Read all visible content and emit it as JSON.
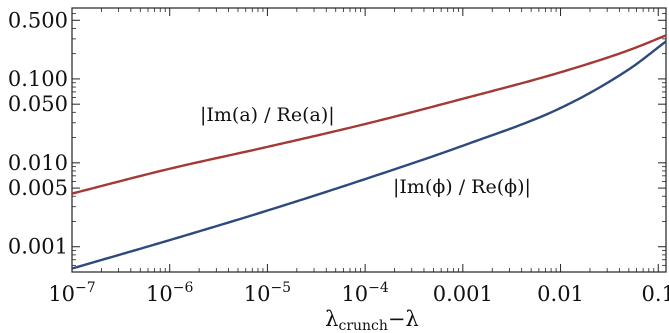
{
  "chart_data": {
    "type": "line",
    "xscale": "log",
    "yscale": "log",
    "xlim": [
      1e-07,
      0.12
    ],
    "ylim": [
      0.0005,
      0.7
    ],
    "grid": false,
    "xlabel": {
      "main": "λ",
      "sub": "crunch",
      "tail": "−λ"
    },
    "x_ticks": [
      {
        "value": 1e-07,
        "base": "10",
        "exp": "−7"
      },
      {
        "value": 1e-06,
        "base": "10",
        "exp": "−6"
      },
      {
        "value": 1e-05,
        "base": "10",
        "exp": "−5"
      },
      {
        "value": 0.0001,
        "base": "10",
        "exp": "−4"
      },
      {
        "value": 0.001,
        "text": "0.001"
      },
      {
        "value": 0.01,
        "text": "0.01"
      },
      {
        "value": 0.1,
        "text": "0.1"
      }
    ],
    "y_ticks": [
      {
        "value": 0.5,
        "text": "0.500"
      },
      {
        "value": 0.1,
        "text": "0.100"
      },
      {
        "value": 0.05,
        "text": "0.050"
      },
      {
        "value": 0.01,
        "text": "0.010"
      },
      {
        "value": 0.005,
        "text": "0.005"
      },
      {
        "value": 0.001,
        "text": "0.001"
      }
    ],
    "series": [
      {
        "name": "|Im(a) / Re(a)|",
        "color": "#a33a35",
        "x": [
          1e-07,
          1e-06,
          1e-05,
          0.0001,
          0.001,
          0.01,
          0.05,
          0.12
        ],
        "y": [
          0.0043,
          0.0085,
          0.0155,
          0.029,
          0.058,
          0.12,
          0.22,
          0.33
        ]
      },
      {
        "name": "|Im(ϕ) / Re(ϕ)|",
        "color": "#2e4a7d",
        "x": [
          1e-07,
          1e-06,
          1e-05,
          0.0001,
          0.001,
          0.01,
          0.05,
          0.12
        ],
        "y": [
          0.00055,
          0.0012,
          0.0027,
          0.0064,
          0.016,
          0.045,
          0.13,
          0.28
        ]
      }
    ]
  }
}
